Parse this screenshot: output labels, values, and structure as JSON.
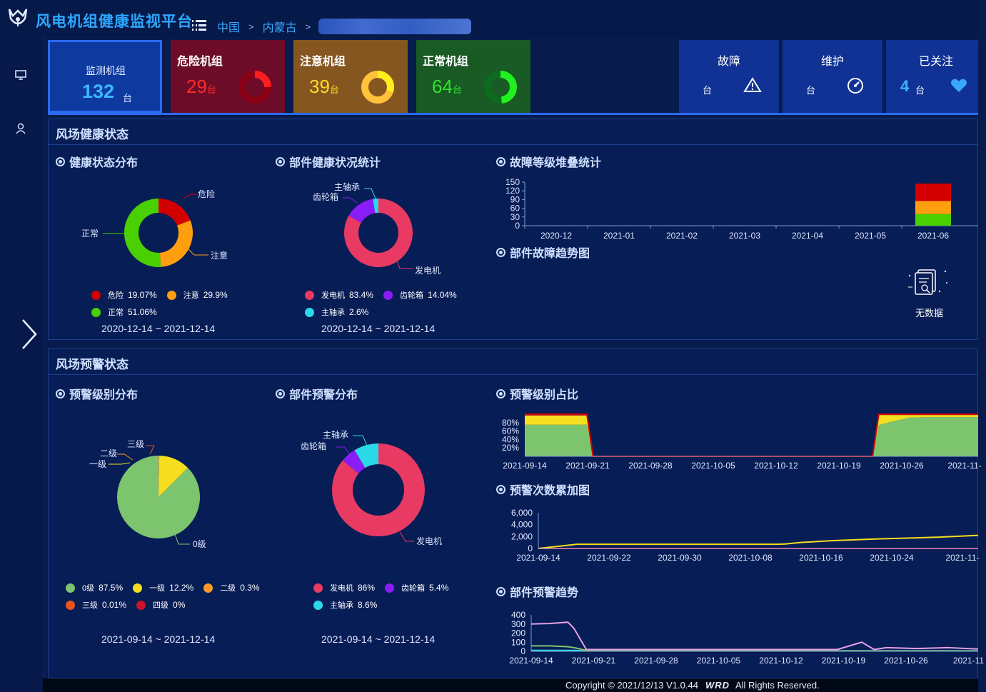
{
  "app": {
    "title": "风电机组健康监视平台"
  },
  "breadcrumb": {
    "items": [
      "中国",
      "内蒙古"
    ],
    "separator": ">"
  },
  "stats": {
    "monitor": {
      "label": "监测机组",
      "value": "132",
      "unit": "台"
    },
    "danger": {
      "label": "危险机组",
      "value": "29",
      "unit": "台",
      "color": "#ff2b2b"
    },
    "warn": {
      "label": "注意机组",
      "value": "39",
      "unit": "台",
      "color": "#ffd92a"
    },
    "ok": {
      "label": "正常机组",
      "value": "64",
      "unit": "台",
      "color": "#2ee32e"
    },
    "fault": {
      "label": "故障",
      "value": "",
      "unit": "台",
      "icon": "warning-icon"
    },
    "maint": {
      "label": "维护",
      "value": "",
      "unit": "台",
      "icon": "gauge-icon"
    },
    "follow": {
      "label": "已关注",
      "value": "4",
      "unit": "台",
      "icon": "heart-icon"
    }
  },
  "health": {
    "title": "风场健康状态",
    "status_dist": {
      "title": "健康状态分布",
      "range": "2020-12-14 ~ 2021-12-14",
      "legend": [
        {
          "name": "危险",
          "pct": "19.07%",
          "color": "#d40000"
        },
        {
          "name": "注意",
          "pct": "29.9%",
          "color": "#ff9f0f"
        },
        {
          "name": "正常",
          "pct": "51.06%",
          "color": "#4ad000"
        }
      ]
    },
    "component": {
      "title": "部件健康状况统计",
      "range": "2020-12-14 ~ 2021-12-14",
      "legend": [
        {
          "name": "发电机",
          "pct": "83.4%",
          "color": "#e83a62"
        },
        {
          "name": "齿轮箱",
          "pct": "14.04%",
          "color": "#8a1cf5"
        },
        {
          "name": "主轴承",
          "pct": "2.6%",
          "color": "#2ad9e8"
        }
      ]
    },
    "fault_level": {
      "title": "故障等级堆叠统计"
    },
    "fault_trend": {
      "title": "部件故障趋势图",
      "empty": "无数据"
    }
  },
  "warning": {
    "title": "风场预警状态",
    "level_dist": {
      "title": "预警级别分布",
      "range": "2021-09-14 ~ 2021-12-14",
      "legend": [
        {
          "name": "0级",
          "pct": "87.5%",
          "color": "#7dc46e"
        },
        {
          "name": "一级",
          "pct": "12.2%",
          "color": "#f5de1e"
        },
        {
          "name": "二级",
          "pct": "0.3%",
          "color": "#ff9a2a"
        },
        {
          "name": "三级",
          "pct": "0.01%",
          "color": "#e9541b"
        },
        {
          "name": "四级",
          "pct": "0%",
          "color": "#c9142a"
        }
      ]
    },
    "component": {
      "title": "部件预警分布",
      "range": "2021-09-14 ~ 2021-12-14",
      "legend": [
        {
          "name": "发电机",
          "pct": "86%",
          "color": "#e83a62"
        },
        {
          "name": "齿轮箱",
          "pct": "5.4%",
          "color": "#8a1cf5"
        },
        {
          "name": "主轴承",
          "pct": "8.6%",
          "color": "#2ad9e8"
        }
      ]
    },
    "ratio": {
      "title": "预警级别占比"
    },
    "cumulative": {
      "title": "预警次数累加图"
    },
    "trend": {
      "title": "部件预警趋势"
    }
  },
  "footer": {
    "copyright": "Copyright © 2021/12/13 V1.0.44",
    "brand": "WRD",
    "rights": "All Rights Reserved."
  },
  "chart_data": [
    {
      "type": "pie",
      "variant": "donut",
      "categories": [
        "危险",
        "注意",
        "正常"
      ],
      "values": [
        19.07,
        29.9,
        51.06
      ],
      "colors": [
        "#d40000",
        "#ff9f0f",
        "#4ad000"
      ]
    },
    {
      "type": "pie",
      "variant": "donut",
      "categories": [
        "发电机",
        "齿轮箱",
        "主轴承"
      ],
      "values": [
        83.4,
        14.04,
        2.6
      ],
      "colors": [
        "#e83a62",
        "#8a1cf5",
        "#2ad9e8"
      ]
    },
    {
      "type": "bar",
      "stacked": true,
      "categories": [
        "2020-12",
        "2021-01",
        "2021-02",
        "2021-03",
        "2021-04",
        "2021-05",
        "2021-06"
      ],
      "series": [
        {
          "values": [
            0,
            0,
            0,
            0,
            0,
            0,
            40
          ],
          "color": "#4ad000"
        },
        {
          "values": [
            0,
            0,
            0,
            0,
            0,
            0,
            45
          ],
          "color": "#ff9f0f"
        },
        {
          "values": [
            0,
            0,
            0,
            0,
            0,
            0,
            60
          ],
          "color": "#d40000"
        }
      ],
      "yticks": [
        0,
        30,
        60,
        90,
        120,
        150
      ],
      "ylim": [
        0,
        150
      ]
    },
    {
      "type": "pie",
      "categories": [
        "0级",
        "一级",
        "二级",
        "三级",
        "四级"
      ],
      "values": [
        87.5,
        12.2,
        0.3,
        0.01,
        0
      ],
      "colors": [
        "#7dc46e",
        "#f5de1e",
        "#ff9a2a",
        "#e9541b",
        "#c9142a"
      ]
    },
    {
      "type": "pie",
      "variant": "donut",
      "categories": [
        "发电机",
        "齿轮箱",
        "主轴承"
      ],
      "values": [
        86,
        5.4,
        8.6
      ],
      "colors": [
        "#e83a62",
        "#8a1cf5",
        "#2ad9e8"
      ]
    },
    {
      "type": "area",
      "stacked": true,
      "percent": true,
      "xticks": [
        "2021-09-14",
        "2021-09-21",
        "2021-09-28",
        "2021-10-05",
        "2021-10-12",
        "2021-10-19",
        "2021-10-26",
        "2021-11-"
      ],
      "yticks": [
        "20%",
        "40%",
        "60%",
        "80%"
      ],
      "x": [
        0,
        10,
        11,
        56,
        57,
        59,
        62,
        65,
        69,
        73
      ],
      "series": [
        {
          "values": [
            75,
            75,
            0,
            0,
            74,
            82,
            92,
            93,
            93,
            93
          ],
          "color": "#7dc46e"
        },
        {
          "values": [
            22,
            22,
            0,
            0,
            24,
            16,
            6,
            5,
            5,
            5
          ],
          "color": "#f5de1e"
        },
        {
          "values": [
            3,
            3,
            0,
            0,
            2,
            2,
            2,
            2,
            2,
            2
          ],
          "color": "#c9142a"
        }
      ]
    },
    {
      "type": "line",
      "xticks": [
        "2021-09-14",
        "2021-09-22",
        "2021-09-30",
        "2021-10-08",
        "2021-10-16",
        "2021-10-24",
        "2021-11-"
      ],
      "yticks": [
        "0",
        "2,000",
        "4,000",
        "6,000"
      ],
      "ylim": [
        0,
        6000
      ],
      "x": [
        0,
        5,
        30,
        31,
        32,
        34,
        38,
        44,
        52,
        57
      ],
      "series": [
        {
          "values": [
            0,
            700,
            700,
            700,
            750,
            1000,
            1300,
            1600,
            1900,
            2200
          ],
          "color": "#f5de1e"
        },
        {
          "values": [
            0,
            0,
            0,
            0,
            0,
            0,
            0,
            0,
            0,
            0
          ],
          "color": "#e83a62"
        }
      ]
    },
    {
      "type": "line",
      "xticks": [
        "2021-09-14",
        "2021-09-21",
        "2021-09-28",
        "2021-10-05",
        "2021-10-12",
        "2021-10-19",
        "2021-10-26",
        "2021-11"
      ],
      "yticks": [
        "0",
        "100",
        "200",
        "300",
        "400"
      ],
      "ylim": [
        0,
        400
      ],
      "x": [
        0,
        3,
        6,
        7,
        9,
        50,
        54,
        56,
        58,
        63,
        68,
        73
      ],
      "series": [
        {
          "values": [
            300,
            305,
            320,
            250,
            20,
            20,
            100,
            20,
            40,
            30,
            40,
            25
          ],
          "color": "#e6a0e6"
        },
        {
          "values": [
            60,
            60,
            50,
            40,
            10,
            5,
            5,
            5,
            5,
            5,
            5,
            5
          ],
          "color": "#7dc46e"
        },
        {
          "values": [
            10,
            10,
            10,
            10,
            5,
            5,
            5,
            5,
            5,
            5,
            5,
            5
          ],
          "color": "#2ad9e8"
        }
      ]
    }
  ]
}
